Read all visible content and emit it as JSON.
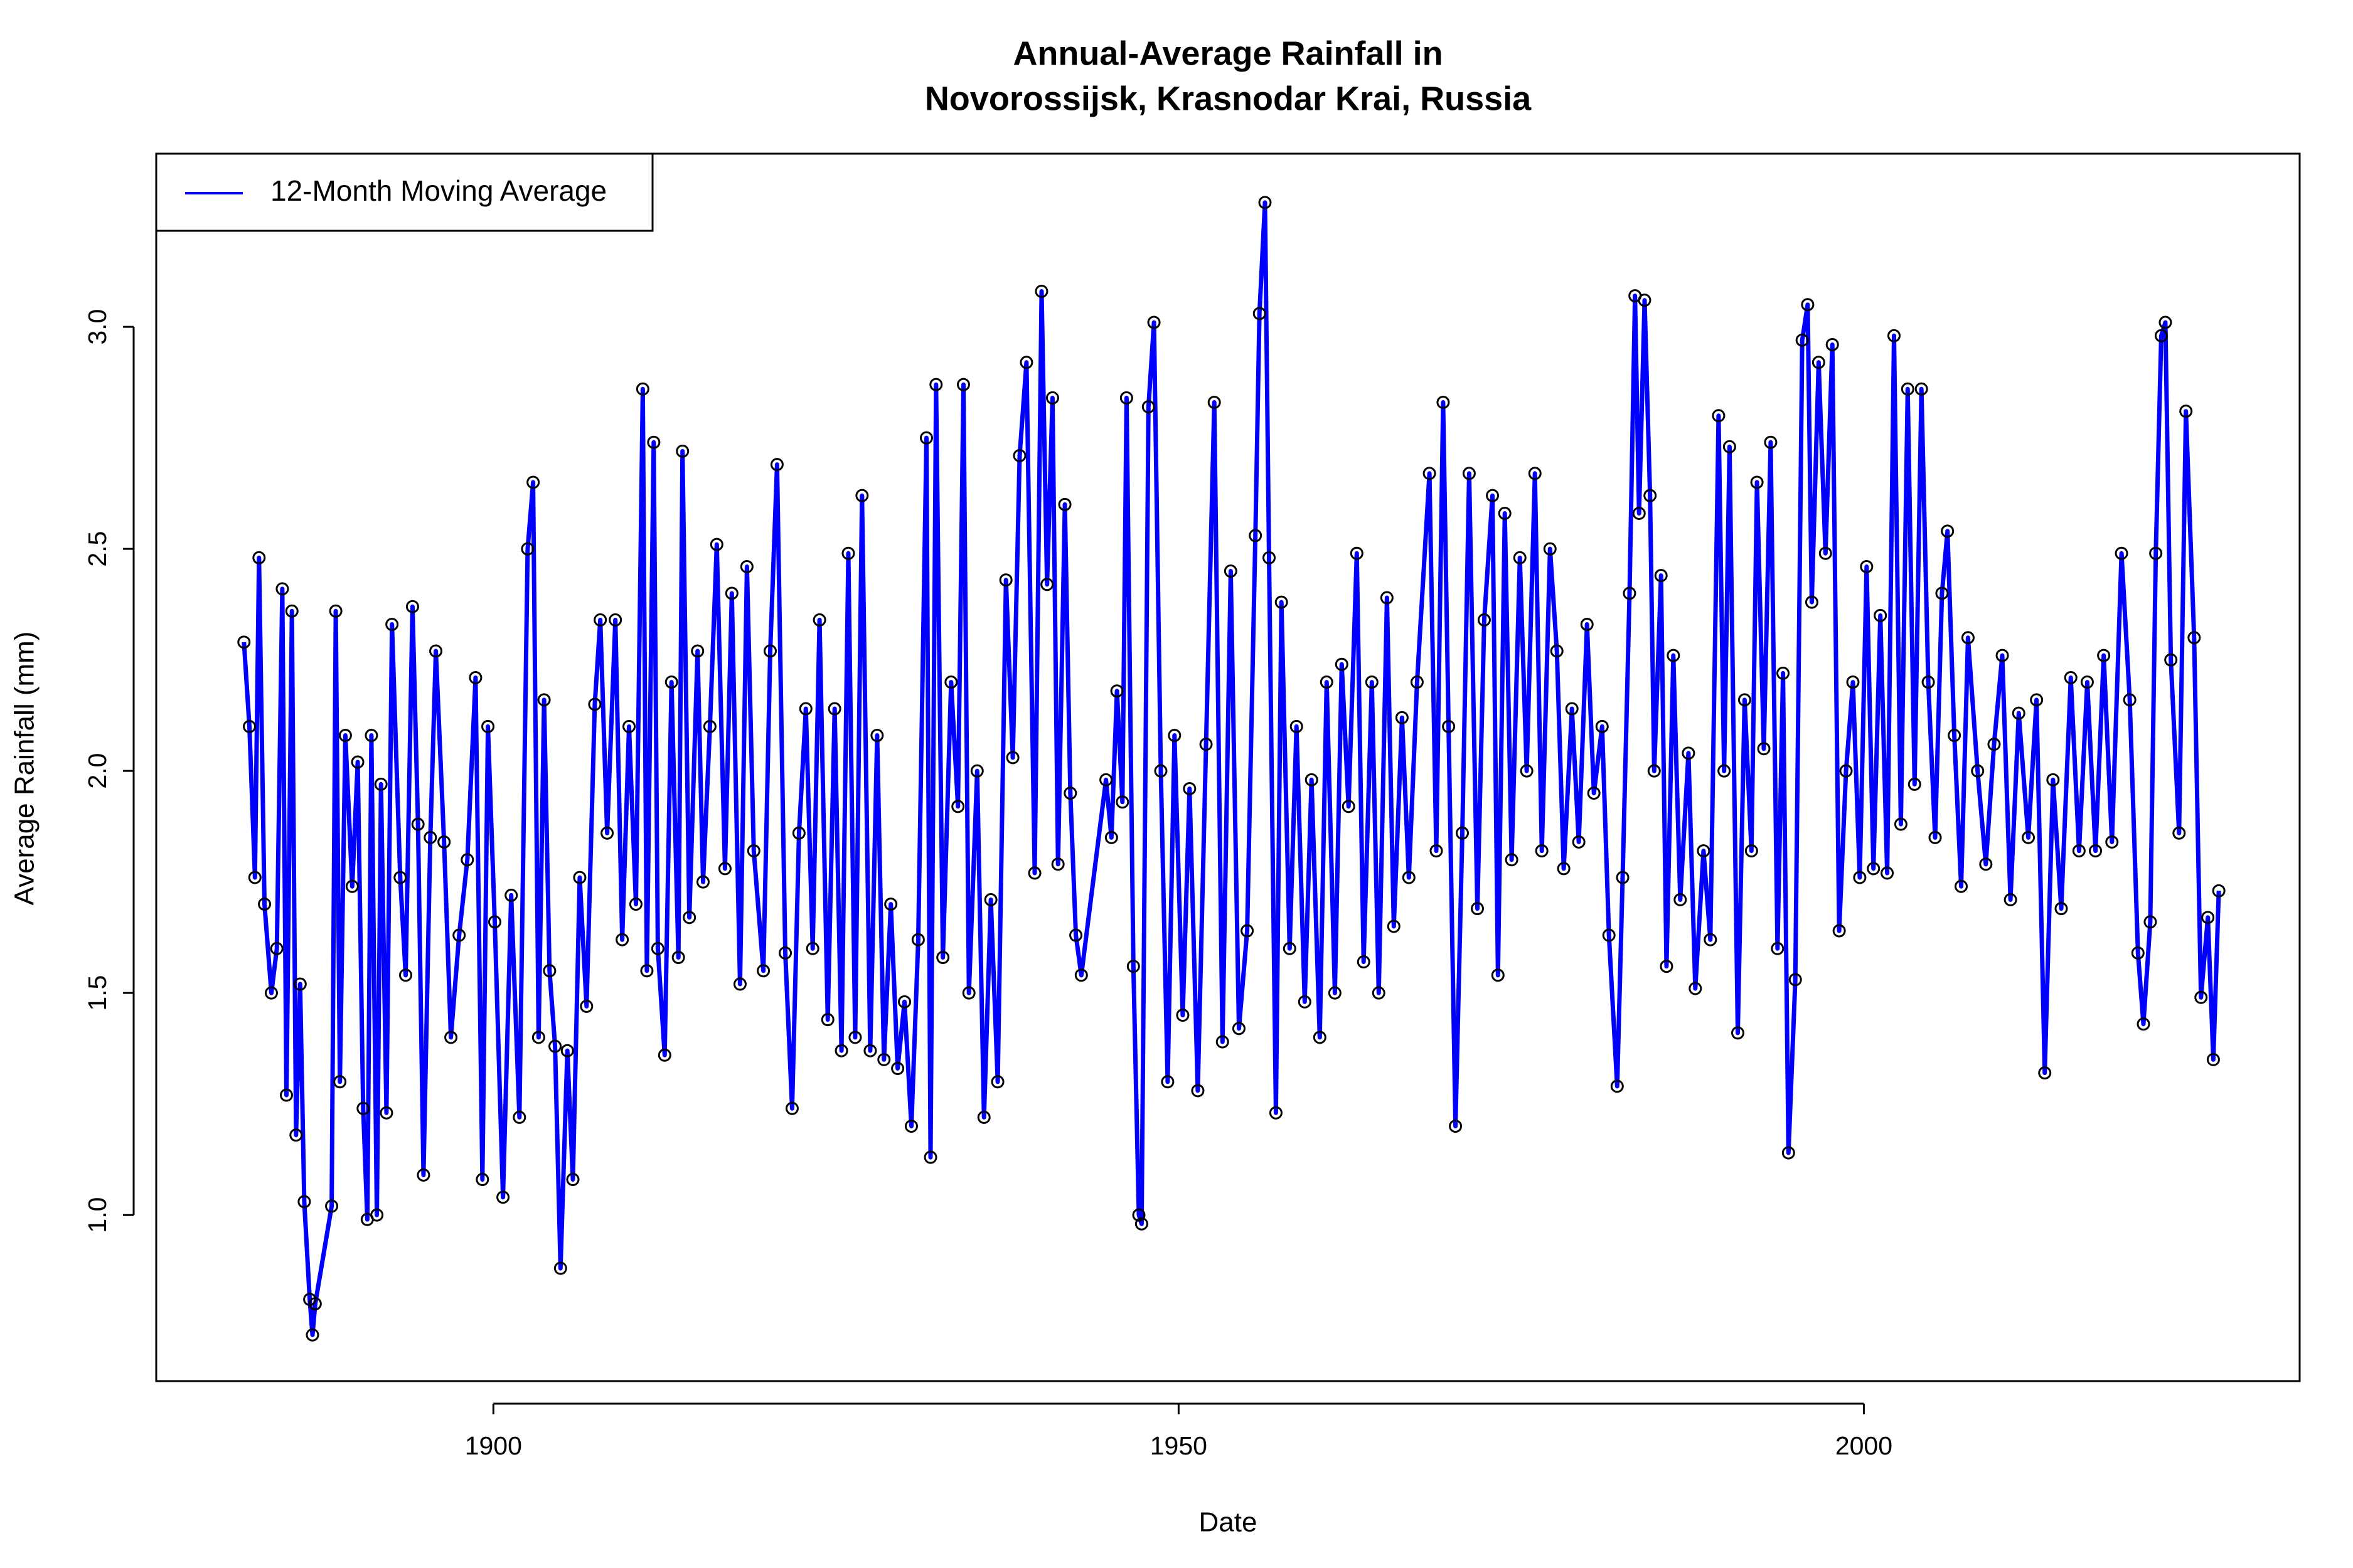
{
  "chart_data": {
    "type": "line",
    "title": [
      "Annual-Average Rainfall in",
      "Novorossijsk, Krasnodar Krai, Russia"
    ],
    "x_label": "Date",
    "y_label": "Average Rainfall (mm)",
    "xlim": [
      1875.4,
      2031.8
    ],
    "ylim": [
      0.626,
      3.39
    ],
    "xticks": [
      1900,
      1950,
      2000
    ],
    "yticks": [
      {
        "value": 1,
        "label": "1.0"
      },
      1.5,
      {
        "value": 2,
        "label": "2.0"
      },
      2.5,
      {
        "value": 3,
        "label": "3.0"
      }
    ],
    "grid": false,
    "legend": "top-left",
    "marker_color": "#000000",
    "x": [
      1881.8,
      1882.2,
      1882.6,
      1882.9,
      1883.3,
      1883.8,
      1884.2,
      1884.6,
      1884.9,
      1885.3,
      1885.6,
      1885.9,
      1886.2,
      1886.6,
      1886.8,
      1887.0,
      1888.2,
      1888.5,
      1888.8,
      1889.2,
      1889.7,
      1890.1,
      1890.5,
      1890.8,
      1891.1,
      1891.5,
      1891.8,
      1892.2,
      1892.6,
      1893.2,
      1893.6,
      1894.1,
      1894.5,
      1894.9,
      1895.4,
      1895.8,
      1896.4,
      1896.9,
      1897.5,
      1898.1,
      1898.7,
      1899.2,
      1899.6,
      1900.1,
      1900.7,
      1901.3,
      1901.9,
      1902.5,
      1902.9,
      1903.3,
      1903.7,
      1904.1,
      1904.5,
      1904.9,
      1905.4,
      1905.8,
      1906.3,
      1906.8,
      1907.4,
      1907.8,
      1908.3,
      1908.9,
      1909.4,
      1909.9,
      1910.4,
      1910.9,
      1911.2,
      1911.7,
      1912.0,
      1912.5,
      1913.0,
      1913.5,
      1913.8,
      1914.3,
      1914.9,
      1915.3,
      1915.8,
      1916.3,
      1916.9,
      1917.4,
      1918.0,
      1918.5,
      1919.0,
      1919.7,
      1920.2,
      1920.7,
      1921.3,
      1921.8,
      1922.3,
      1922.8,
      1923.3,
      1923.8,
      1924.4,
      1924.9,
      1925.4,
      1925.9,
      1926.4,
      1926.9,
      1927.5,
      1928.0,
      1928.5,
      1929.0,
      1929.5,
      1930.0,
      1930.5,
      1931.0,
      1931.6,
      1931.9,
      1932.3,
      1932.8,
      1933.4,
      1933.9,
      1934.3,
      1934.7,
      1935.3,
      1935.8,
      1936.3,
      1936.8,
      1937.4,
      1937.9,
      1938.4,
      1938.9,
      1939.5,
      1940.0,
      1940.4,
      1940.8,
      1941.2,
      1941.7,
      1942.1,
      1942.5,
      1942.9,
      1944.7,
      1945.1,
      1945.5,
      1945.9,
      1946.2,
      1946.7,
      1947.1,
      1947.3,
      1947.8,
      1948.2,
      1948.7,
      1949.2,
      1949.7,
      1950.3,
      1950.8,
      1951.4,
      1952.0,
      1952.6,
      1953.2,
      1953.8,
      1954.4,
      1955.0,
      1955.6,
      1955.9,
      1956.3,
      1956.6,
      1957.1,
      1957.5,
      1958.1,
      1958.6,
      1959.2,
      1959.7,
      1960.3,
      1960.8,
      1961.4,
      1961.9,
      1962.4,
      1963.0,
      1963.5,
      1964.1,
      1964.6,
      1965.2,
      1965.7,
      1966.3,
      1966.8,
      1967.4,
      1968.3,
      1968.8,
      1969.3,
      1969.7,
      1970.2,
      1970.7,
      1971.2,
      1971.8,
      1972.3,
      1972.9,
      1973.3,
      1973.8,
      1974.3,
      1974.9,
      1975.4,
      1976.0,
      1976.5,
      1977.1,
      1977.6,
      1978.1,
      1978.7,
      1979.2,
      1979.8,
      1980.3,
      1980.9,
      1981.4,
      1982.0,
      1982.4,
      1982.9,
      1983.3,
      1983.6,
      1984.0,
      1984.4,
      1984.7,
      1985.2,
      1985.6,
      1986.1,
      1986.6,
      1987.2,
      1987.7,
      1988.3,
      1988.8,
      1989.4,
      1989.8,
      1990.2,
      1990.8,
      1991.3,
      1991.8,
      1992.2,
      1992.7,
      1993.2,
      1993.7,
      1994.1,
      1994.5,
      1995.0,
      1995.5,
      1995.9,
      1996.2,
      1996.7,
      1997.2,
      1997.7,
      1998.2,
      1998.7,
      1999.2,
      1999.7,
      2000.2,
      2000.7,
      2001.2,
      2001.7,
      2002.2,
      2002.7,
      2003.2,
      2003.7,
      2004.2,
      2004.7,
      2005.2,
      2005.7,
      2006.1,
      2006.6,
      2007.1,
      2007.6,
      2008.3,
      2008.9,
      2009.5,
      2010.1,
      2010.7,
      2011.3,
      2012.0,
      2012.6,
      2013.2,
      2013.8,
      2014.4,
      2015.1,
      2015.7,
      2016.3,
      2016.9,
      2017.5,
      2018.1,
      2018.8,
      2019.4,
      2020.0,
      2020.4,
      2020.9,
      2021.3,
      2021.7,
      2022.0,
      2022.4,
      2023.0,
      2023.5,
      2024.1,
      2024.6,
      2025.1,
      2025.5,
      2025.9
    ],
    "series": [
      {
        "name": "12-Month Moving Average",
        "color": "#0000ff",
        "values": [
          2.29,
          2.1,
          1.76,
          2.48,
          1.7,
          1.5,
          1.6,
          2.41,
          1.27,
          2.36,
          1.18,
          1.52,
          1.03,
          0.81,
          0.73,
          0.8,
          1.02,
          2.36,
          1.3,
          2.08,
          1.74,
          2.02,
          1.24,
          0.99,
          2.08,
          1.0,
          1.97,
          1.23,
          2.33,
          1.76,
          1.54,
          2.37,
          1.88,
          1.09,
          1.85,
          2.27,
          1.84,
          1.4,
          1.63,
          1.8,
          2.21,
          1.08,
          2.1,
          1.66,
          1.04,
          1.72,
          1.22,
          2.5,
          2.65,
          1.4,
          2.16,
          1.55,
          1.38,
          0.88,
          1.37,
          1.08,
          1.76,
          1.47,
          2.15,
          2.34,
          1.86,
          2.34,
          1.62,
          2.1,
          1.7,
          2.86,
          1.55,
          2.74,
          1.6,
          1.36,
          2.2,
          1.58,
          2.72,
          1.67,
          2.27,
          1.75,
          2.1,
          2.51,
          1.78,
          2.4,
          1.52,
          2.46,
          1.82,
          1.55,
          2.27,
          2.69,
          1.59,
          1.24,
          1.86,
          2.14,
          1.6,
          2.34,
          1.44,
          2.14,
          1.37,
          2.49,
          1.4,
          2.62,
          1.37,
          2.08,
          1.35,
          1.7,
          1.33,
          1.48,
          1.2,
          1.62,
          2.75,
          1.13,
          2.87,
          1.58,
          2.2,
          1.92,
          2.87,
          1.5,
          2.0,
          1.22,
          1.71,
          1.3,
          2.43,
          2.03,
          2.71,
          2.92,
          1.77,
          3.08,
          2.42,
          2.84,
          1.79,
          2.6,
          1.95,
          1.63,
          1.54,
          1.98,
          1.85,
          2.18,
          1.93,
          2.84,
          1.56,
          1.0,
          0.98,
          2.82,
          3.01,
          2.0,
          1.3,
          2.08,
          1.45,
          1.96,
          1.28,
          2.06,
          2.83,
          1.39,
          2.45,
          1.42,
          1.64,
          2.53,
          3.03,
          3.28,
          2.48,
          1.23,
          2.38,
          1.6,
          2.1,
          1.48,
          1.98,
          1.4,
          2.2,
          1.5,
          2.24,
          1.92,
          2.49,
          1.57,
          2.2,
          1.5,
          2.39,
          1.65,
          2.12,
          1.76,
          2.2,
          2.67,
          1.82,
          2.83,
          2.1,
          1.2,
          1.86,
          2.67,
          1.69,
          2.34,
          2.62,
          1.54,
          2.58,
          1.8,
          2.48,
          2.0,
          2.67,
          1.82,
          2.5,
          2.27,
          1.78,
          2.14,
          1.84,
          2.33,
          1.95,
          2.1,
          1.63,
          1.29,
          1.76,
          2.4,
          3.07,
          2.58,
          3.06,
          2.62,
          2.0,
          2.44,
          1.56,
          2.26,
          1.71,
          2.04,
          1.51,
          1.82,
          1.62,
          2.8,
          2.0,
          2.73,
          1.41,
          2.16,
          1.82,
          2.65,
          2.05,
          2.74,
          1.6,
          2.22,
          1.14,
          1.53,
          2.97,
          3.05,
          2.38,
          2.92,
          2.49,
          2.96,
          1.64,
          2.0,
          2.2,
          1.76,
          2.46,
          1.78,
          2.35,
          1.77,
          2.98,
          1.88,
          2.86,
          1.97,
          2.86,
          2.2,
          1.85,
          2.4,
          2.54,
          2.08,
          1.74,
          2.3,
          2.0,
          1.79,
          2.06,
          2.26,
          1.71,
          2.13,
          1.85,
          2.16,
          1.32,
          1.98,
          1.69,
          2.21,
          1.82,
          2.2,
          1.82,
          2.26,
          1.84,
          2.49,
          2.16,
          1.59,
          1.43,
          1.66,
          2.49,
          2.98,
          3.01,
          2.25,
          1.86,
          2.81,
          2.3,
          1.49,
          1.67,
          1.35,
          1.73
        ]
      }
    ]
  }
}
